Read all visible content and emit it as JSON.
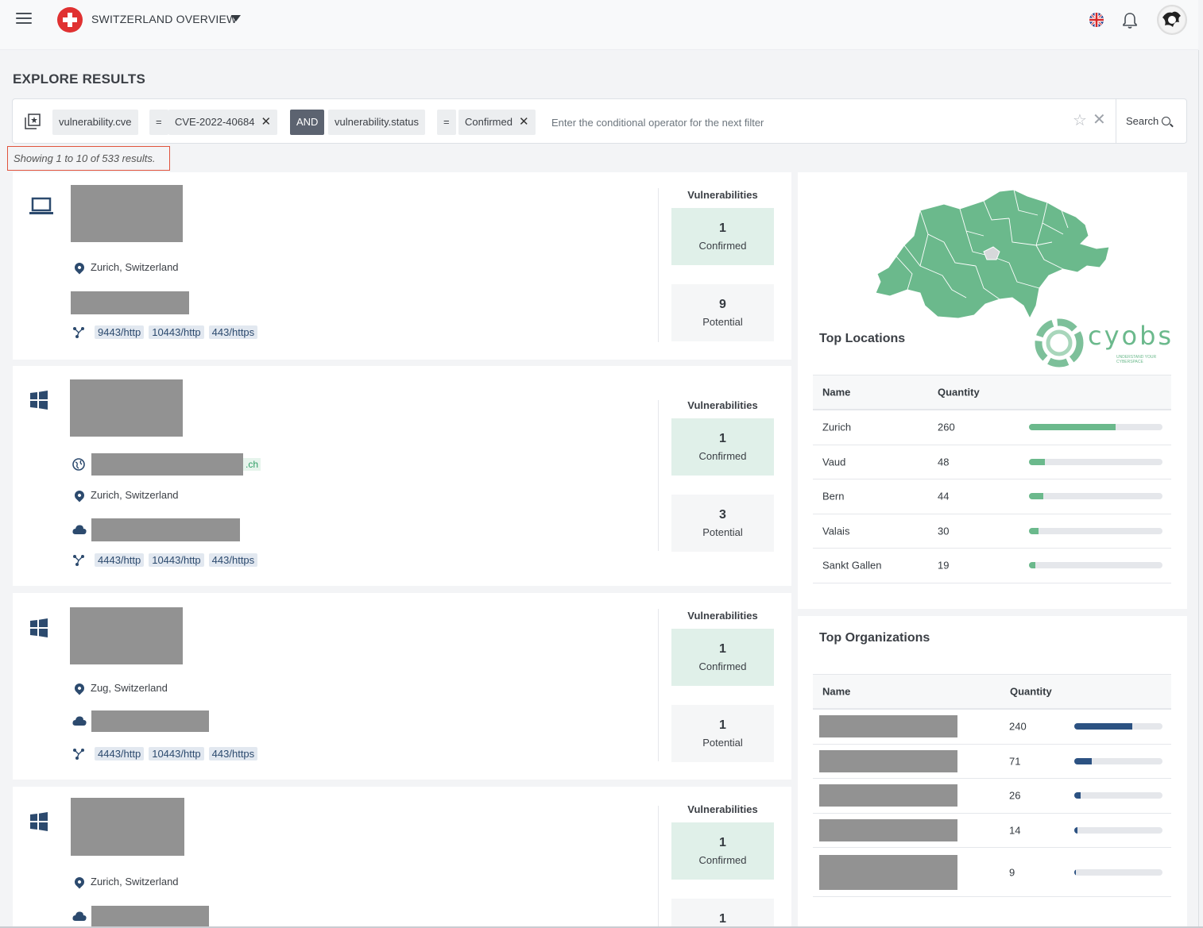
{
  "header": {
    "app_title": "SWITZERLAND OVERVIEW"
  },
  "page": {
    "title": "EXPLORE RESULTS",
    "results_count": "Showing 1 to 10 of 533 results."
  },
  "filter": {
    "field1": "vulnerability.cve",
    "op1": "=",
    "value1": "CVE-2022-40684",
    "conjunction": "AND",
    "field2": "vulnerability.status",
    "op2": "=",
    "value2": "Confirmed",
    "placeholder": "Enter the conditional operator for the next filter",
    "search_label": "Search",
    "remove_glyph": "✕"
  },
  "vuln_labels": {
    "heading": "Vulnerabilities",
    "confirmed": "Confirmed",
    "potential": "Potential"
  },
  "results": [
    {
      "device": "laptop-icon",
      "location": "Zurich, Switzerland",
      "ports": [
        "9443/http",
        "10443/http",
        "443/https"
      ],
      "confirmed": "1",
      "potential": "9"
    },
    {
      "device": "windows-icon",
      "domain_suffix": ".ch",
      "location": "Zurich, Switzerland",
      "ports": [
        "4443/http",
        "10443/http",
        "443/https"
      ],
      "confirmed": "1",
      "potential": "3"
    },
    {
      "device": "windows-icon",
      "location": "Zug, Switzerland",
      "ports": [
        "4443/http",
        "10443/http",
        "443/https"
      ],
      "confirmed": "1",
      "potential": "1"
    },
    {
      "device": "windows-icon",
      "location": "Zurich, Switzerland",
      "confirmed": "1",
      "potential": "1"
    }
  ],
  "top_locations": {
    "title": "Top Locations",
    "col_name": "Name",
    "col_quantity": "Quantity",
    "bar_color": "#6bb98c",
    "rows": [
      {
        "name": "Zurich",
        "quantity": "260",
        "share": 0.65
      },
      {
        "name": "Vaud",
        "quantity": "48",
        "share": 0.12
      },
      {
        "name": "Bern",
        "quantity": "44",
        "share": 0.11
      },
      {
        "name": "Valais",
        "quantity": "30",
        "share": 0.07
      },
      {
        "name": "Sankt Gallen",
        "quantity": "19",
        "share": 0.05
      }
    ]
  },
  "top_organizations": {
    "title": "Top Organizations",
    "col_name": "Name",
    "col_quantity": "Quantity",
    "bar_color": "#2c5282",
    "rows": [
      {
        "quantity": "240",
        "share": 0.66
      },
      {
        "quantity": "71",
        "share": 0.2
      },
      {
        "quantity": "26",
        "share": 0.07
      },
      {
        "quantity": "14",
        "share": 0.04
      },
      {
        "quantity": "9",
        "share": 0.02
      }
    ]
  },
  "logo": {
    "text": "cyobs",
    "tagline": "UNDERSTAND YOUR CYBERSPACE"
  },
  "colors": {
    "map_green": "#6bb98c",
    "accent_navy": "#2c4a6e",
    "confirmed_bg": "#e0f0e9",
    "highlight_red": "#e0533d"
  }
}
